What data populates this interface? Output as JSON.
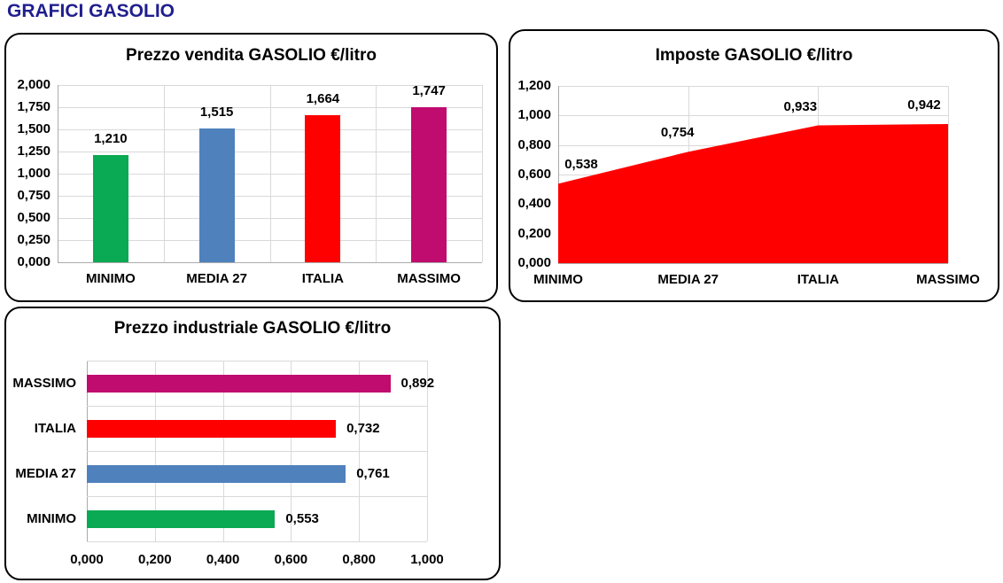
{
  "page": {
    "title": "GRAFICI GASOLIO",
    "title_color": "#1F1F8F",
    "background": "#FFFFFF"
  },
  "palette": {
    "red": "#FF0000",
    "green": "#0AA953",
    "blue": "#4F81BD",
    "magenta": "#C00B6F",
    "gridline": "#D9D9D9",
    "axis_line": "#ABABAB",
    "text": "#000000",
    "panel_border": "#000000"
  },
  "chart_data": [
    {
      "id": "prezzo-vendita-gasolio",
      "type": "bar",
      "title": "Prezzo vendita GASOLIO €/litro",
      "categories": [
        "MINIMO",
        "MEDIA 27",
        "ITALIA",
        "MASSIMO"
      ],
      "values": [
        1.21,
        1.515,
        1.664,
        1.747
      ],
      "value_labels": [
        "1,210",
        "1,515",
        "1,664",
        "1,747"
      ],
      "bar_colors": [
        "#0AA953",
        "#4F81BD",
        "#FF0000",
        "#C00B6F"
      ],
      "xlabel": "",
      "ylabel": "",
      "ylim": [
        0,
        2.0
      ],
      "ytick_step": 0.25,
      "ytick_labels": [
        "2,000",
        "1,750",
        "1,500",
        "1,250",
        "1,000",
        "0,750",
        "0,500",
        "0,250",
        "0,000"
      ],
      "grid": true,
      "legend": "none"
    },
    {
      "id": "imposte-gasolio",
      "type": "area",
      "title": "Imposte GASOLIO €/litro",
      "categories": [
        "MINIMO",
        "MEDIA 27",
        "ITALIA",
        "MASSIMO"
      ],
      "values": [
        0.538,
        0.754,
        0.933,
        0.942
      ],
      "value_labels": [
        "0,538",
        "0,754",
        "0,933",
        "0,942"
      ],
      "fill_color": "#FF0000",
      "xlabel": "",
      "ylabel": "",
      "ylim": [
        0,
        1.2
      ],
      "ytick_step": 0.2,
      "ytick_labels": [
        "1,200",
        "1,000",
        "0,800",
        "0,600",
        "0,400",
        "0,200",
        "0,000"
      ],
      "grid": true,
      "legend": "none",
      "x_axis_position": "on-tick-marks"
    },
    {
      "id": "prezzo-industriale-gasolio",
      "type": "bar-horizontal",
      "title": "Prezzo industriale GASOLIO €/litro",
      "categories": [
        "MASSIMO",
        "ITALIA",
        "MEDIA 27",
        "MINIMO"
      ],
      "values": [
        0.892,
        0.732,
        0.761,
        0.553
      ],
      "value_labels": [
        "0,892",
        "0,732",
        "0,761",
        "0,553"
      ],
      "bar_colors": [
        "#C00B6F",
        "#FF0000",
        "#4F81BD",
        "#0AA953"
      ],
      "xlabel": "",
      "ylabel": "",
      "xlim": [
        0,
        1.0
      ],
      "xtick_step": 0.2,
      "xtick_labels": [
        "0,000",
        "0,200",
        "0,400",
        "0,600",
        "0,800",
        "1,000"
      ],
      "grid": true,
      "legend": "none"
    }
  ]
}
